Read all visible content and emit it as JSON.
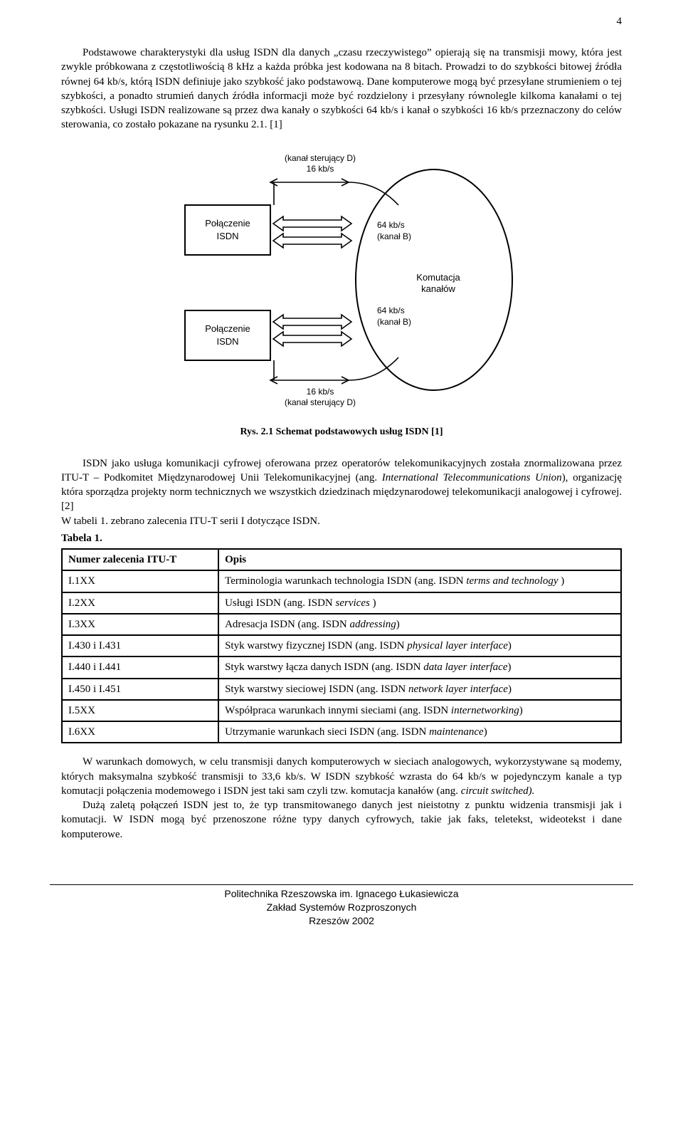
{
  "page_number": "4",
  "para1": "Podstawowe charakterystyki dla usług ISDN dla danych „czasu rzeczywistego” opierają się na transmisji mowy, która jest zwykle próbkowana z częstotliwością 8 kHz a każda próbka jest kodowana na 8 bitach. Prowadzi to do szybkości bitowej źródła równej 64 kb/s, którą ISDN definiuje jako szybkość jako podstawową. Dane komputerowe mogą być przesyłane strumieniem o tej szybkości, a ponadto strumień danych źródła informacji może być rozdzielony i przesyłany równolegle kilkoma kanałami o tej szybkości. Usługi ISDN realizowane są przez dwa kanały o szybkości 64 kb/s i kanał o szybkości 16 kb/s przeznaczony do celów sterowania, co zostało pokazane na rysunku 2.1. [1]",
  "fig": {
    "caption": "Rys. 2.1 Schemat podstawowych usług ISDN [1]",
    "labels": {
      "d_top1": "(kanał sterujący D)",
      "d_top2": "16 kb/s",
      "box": "Połączenie\nISDN",
      "b1a": "64 kb/s",
      "b1b": "(kanał B)",
      "komut": "Komutacja\nkanałów",
      "b2a": "64 kb/s",
      "b2b": "(kanał B)",
      "d_bot1": "16 kb/s",
      "d_bot2": "(kanał sterujący D)"
    }
  },
  "para2": "ISDN jako usługa komunikacji cyfrowej oferowana przez operatorów telekomunikacyjnych została znormalizowana przez ITU-T – Podkomitet Międzynarodowej Unii Telekomunikacyjnej (ang. <i>International Telecommunications Union</i>), organizację która sporządza projekty norm technicznych we wszystkich dziedzinach międzynarodowej telekomunikacji analogowej i cyfrowej. [2]",
  "para3": "W tabeli 1. zebrano zalecenia ITU-T serii I dotyczące ISDN.",
  "table_label": "Tabela 1.",
  "table": {
    "head": [
      "Numer zalecenia ITU-T",
      "Opis"
    ],
    "rows": [
      [
        "I.1XX",
        "Terminologia warunkach technologia ISDN (ang. ISDN <i>terms and technology</i> )"
      ],
      [
        "I.2XX",
        "Usługi ISDN (ang. ISDN <i>services</i> )"
      ],
      [
        "I.3XX",
        "Adresacja ISDN (ang. ISDN  <i>addressing</i>)"
      ],
      [
        "I.430 i I.431",
        "Styk warstwy fizycznej ISDN (ang. ISDN <i>physical layer interface</i>)"
      ],
      [
        "I.440 i I.441",
        "Styk warstwy łącza danych ISDN (ang. ISDN <i>data layer interface</i>)"
      ],
      [
        "I.450 i I.451",
        "Styk warstwy sieciowej ISDN (ang. ISDN <i>network layer interface</i>)"
      ],
      [
        "I.5XX",
        "Współpraca warunkach innymi sieciami (ang. ISDN <i>internetworking</i>)"
      ],
      [
        "I.6XX",
        "Utrzymanie warunkach sieci ISDN (ang. ISDN <i>maintenance</i>)"
      ]
    ]
  },
  "para4": "W warunkach domowych, w celu transmisji danych komputerowych w sieciach analogowych, wykorzystywane są modemy, których maksymalna szybkość transmisji to 33,6 kb/s. W ISDN szybkość wzrasta do 64 kb/s w pojedynczym kanale a typ komutacji połączenia modemowego i ISDN jest taki sam czyli tzw. komutacja kanałów (ang. <i>circuit switched).</i>",
  "para5": "Dużą zaletą połączeń ISDN jest to, że typ transmitowanego danych jest nieistotny z punktu widzenia transmisji jak i komutacji. W ISDN mogą być przenoszone różne typy danych cyfrowych, takie jak faks, teletekst, wideotekst i dane komputerowe.",
  "footer": {
    "l1": "Politechnika Rzeszowska im. Ignacego Łukasiewicza",
    "l2": "Zakład Systemów Rozproszonych",
    "l3": "Rzeszów 2002"
  }
}
